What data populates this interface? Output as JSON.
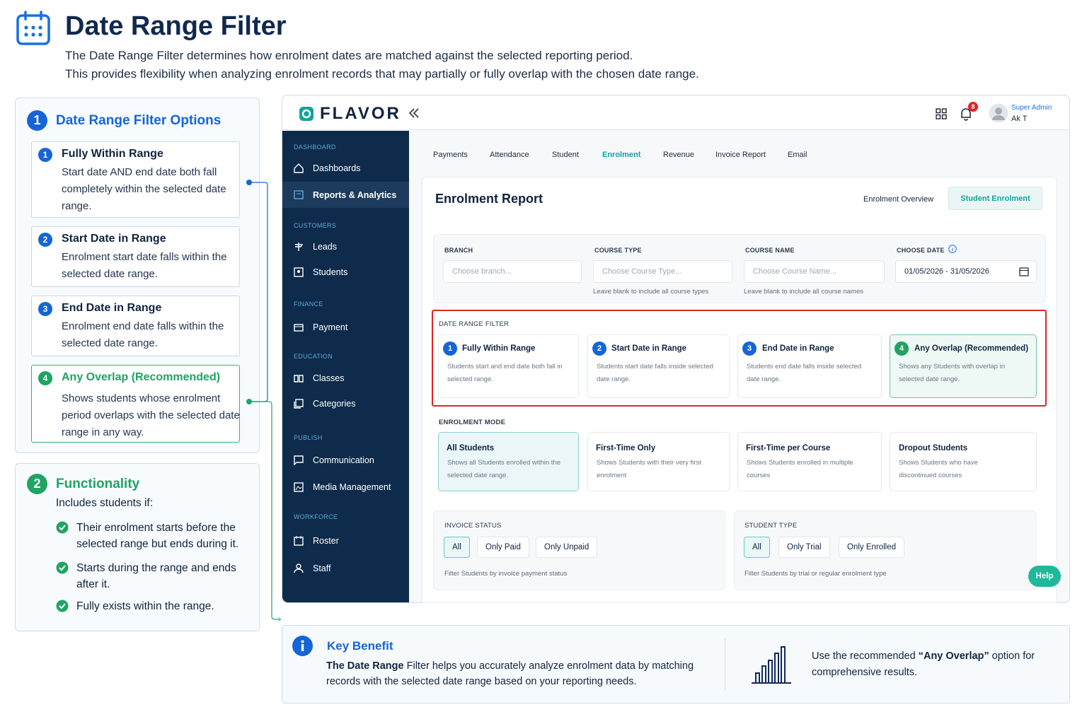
{
  "header": {
    "title": "Date Range Filter",
    "description": [
      "The Date Range Filter determines how enrolment dates are matched against the selected reporting period.",
      "This provides flexibility when analyzing enrolment records that may partially or fully overlap with the chosen date range."
    ]
  },
  "options_panel": {
    "number": "1",
    "title": "Date Range Filter Options",
    "items": [
      {
        "number": "1",
        "title": "Fully Within Range",
        "description": "Start date AND end date both fall completely within the selected date range."
      },
      {
        "number": "2",
        "title": "Start Date in Range",
        "description": "Enrolment start date falls within the selected date range."
      },
      {
        "number": "3",
        "title": "End Date in Range",
        "description": "Enrolment end date falls within the selected date range."
      },
      {
        "number": "4",
        "title": "Any Overlap (Recommended)",
        "description": "Shows students whose enrolment period overlaps with the selected date range in any way."
      }
    ]
  },
  "functionality_panel": {
    "number": "2",
    "title": "Functionality",
    "intro": "Includes students if:",
    "items": [
      "Their enrolment starts before the selected range but ends during it.",
      "Starts during the range and ends after it.",
      "Fully exists within the range."
    ]
  },
  "app": {
    "brand": "FLAVOR",
    "notification_count": "8",
    "user": {
      "role": "Super Admin",
      "name": "Ak T"
    },
    "sidebar": [
      {
        "heading": "DASHBOARD",
        "items": [
          "Dashboards",
          "Reports & Analytics"
        ]
      },
      {
        "heading": "CUSTOMERS",
        "items": [
          "Leads",
          "Students"
        ]
      },
      {
        "heading": "FINANCE",
        "items": [
          "Payment"
        ]
      },
      {
        "heading": "EDUCATION",
        "items": [
          "Classes",
          "Categories"
        ]
      },
      {
        "heading": "PUBLISH",
        "items": [
          "Communication",
          "Media Management"
        ]
      },
      {
        "heading": "WORKFORCE",
        "items": [
          "Roster",
          "Staff"
        ]
      }
    ],
    "tabs": [
      "Payments",
      "Attendance",
      "Student",
      "Enrolment",
      "Revenue",
      "Invoice Report",
      "Email"
    ],
    "report": {
      "title": "Enrolment Report",
      "views": [
        "Enrolment Overview",
        "Student Enrolment"
      ],
      "filters": [
        {
          "label": "BRANCH",
          "placeholder": "Choose branch..."
        },
        {
          "label": "COURSE TYPE",
          "placeholder": "Choose Course Type...",
          "hint": "Leave blank to include all course types"
        },
        {
          "label": "COURSE NAME",
          "placeholder": "Choose Course Name...",
          "hint": "Leave blank to include all course names"
        },
        {
          "label": "CHOOSE DATE",
          "value": "01/05/2026 - 31/05/2026"
        }
      ],
      "date_range_filter": {
        "heading": "DATE RANGE FILTER",
        "options": [
          {
            "number": "1",
            "title": "Fully Within Range",
            "description": "Students start and end date both fall in selected range."
          },
          {
            "number": "2",
            "title": "Start Date in Range",
            "description": "Students start date falls inside selected date range."
          },
          {
            "number": "3",
            "title": "End Date in Range",
            "description": "Students end date falls inside selected date range."
          },
          {
            "number": "4",
            "title": "Any Overlap (Recommended)",
            "description": "Shows any Students with overlap in selected date range."
          }
        ]
      },
      "enrolment_mode": {
        "heading": "ENROLMENT MODE",
        "options": [
          {
            "title": "All Students",
            "description": "Shows all Students enrolled within the selected date range."
          },
          {
            "title": "First-Time Only",
            "description": "Shows Students with their very first enrolment"
          },
          {
            "title": "First-Time per Course",
            "description": "Shows Students enrolled in multiple courses"
          },
          {
            "title": "Dropout Students",
            "description": "Shows Students who have discontinued courses"
          }
        ]
      },
      "invoice_status": {
        "heading": "INVOICE STATUS",
        "options": [
          "All",
          "Only Paid",
          "Only Unpaid"
        ],
        "hint": "Filter Students by invoice payment status"
      },
      "student_type": {
        "heading": "STUDENT TYPE",
        "options": [
          "All",
          "Only Trial",
          "Only Enrolled"
        ],
        "hint": "Filter Students by trial or regular enrolment type"
      }
    },
    "help": "Help"
  },
  "key_benefit": {
    "title": "Key Benefit",
    "text_bold": "The Date Range",
    "text": " Filter helps you accurately analyze enrolment data by matching records with the selected date range based on your reporting needs.",
    "tip_start": "Use the recommended ",
    "tip_bold": "“Any Overlap”",
    "tip_end": " option for comprehensive results."
  }
}
